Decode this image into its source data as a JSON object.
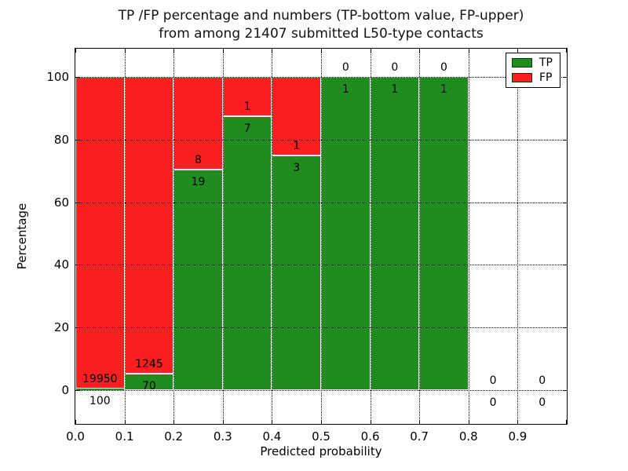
{
  "title": {
    "line1": "TP /FP percentage and numbers (TP-bottom value, FP-upper)",
    "line2": "from among 21407 submitted L50-type contacts"
  },
  "x_axis": {
    "label": "Predicted probability",
    "tick_labels": [
      "0.0",
      "0.1",
      "0.2",
      "0.3",
      "0.4",
      "0.5",
      "0.6",
      "0.7",
      "0.8",
      "0.9"
    ]
  },
  "y_axis": {
    "label": "Percentage",
    "tick_labels": [
      "0",
      "20",
      "40",
      "60",
      "80",
      "100"
    ]
  },
  "legend": {
    "items": [
      {
        "label": "TP",
        "color": "#1e8c1e"
      },
      {
        "label": "FP",
        "color": "#fb2020"
      }
    ]
  },
  "chart_data": {
    "type": "bar",
    "stacked": true,
    "title": "TP /FP percentage and numbers (TP-bottom value, FP-upper)\nfrom among 21407 submitted L50-type contacts",
    "xlabel": "Predicted probability",
    "ylabel": "Percentage",
    "xlim": [
      0.0,
      1.0
    ],
    "ylim": [
      -11,
      109
    ],
    "grid": "dotted",
    "legend_position": "upper right",
    "bin_edges": [
      0.0,
      0.1,
      0.2,
      0.3,
      0.4,
      0.5,
      0.6,
      0.7,
      0.8,
      0.9,
      1.0
    ],
    "x_ticks": [
      0.0,
      0.1,
      0.2,
      0.3,
      0.4,
      0.5,
      0.6,
      0.7,
      0.8,
      0.9
    ],
    "y_ticks": [
      0,
      20,
      40,
      60,
      80,
      100
    ],
    "series": [
      {
        "name": "TP",
        "color": "#1e8c1e",
        "counts": [
          100,
          70,
          19,
          7,
          3,
          1,
          1,
          1,
          0,
          0
        ],
        "percent": [
          0.5,
          5.3,
          70.4,
          87.5,
          75.0,
          100.0,
          100.0,
          100.0,
          0.0,
          0.0
        ]
      },
      {
        "name": "FP",
        "color": "#fb2020",
        "counts": [
          19950,
          1245,
          8,
          1,
          1,
          0,
          0,
          0,
          0,
          0
        ],
        "percent": [
          99.5,
          94.7,
          29.6,
          12.5,
          25.0,
          0.0,
          0.0,
          0.0,
          0.0,
          0.0
        ]
      }
    ]
  }
}
